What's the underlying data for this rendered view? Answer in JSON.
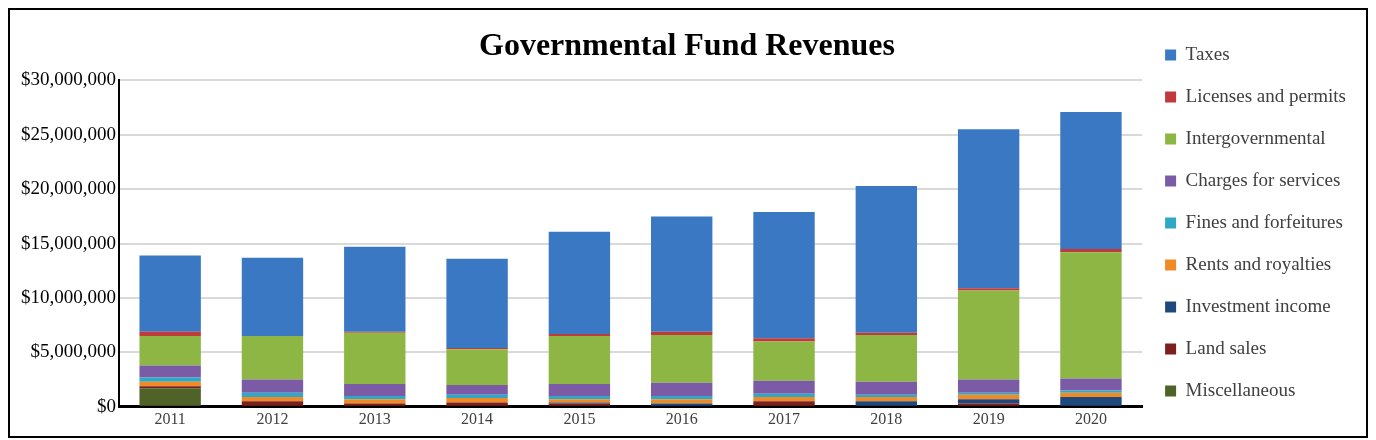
{
  "chart_data": {
    "type": "bar",
    "title": "Governmental Fund Revenues",
    "stacked": true,
    "legend": "right",
    "grid": "y",
    "categories": [
      "2011",
      "2012",
      "2013",
      "2014",
      "2015",
      "2016",
      "2017",
      "2018",
      "2019",
      "2020"
    ],
    "ylim": [
      0,
      30000000
    ],
    "yticks": [
      {
        "value": 0,
        "label": "$0"
      },
      {
        "value": 5000000,
        "label": "$5,000,000"
      },
      {
        "value": 10000000,
        "label": "$10,000,000"
      },
      {
        "value": 15000000,
        "label": "$15,000,000"
      },
      {
        "value": 20000000,
        "label": "$20,000,000"
      },
      {
        "value": 25000000,
        "label": "$25,000,000"
      },
      {
        "value": 30000000,
        "label": "$30,000,000"
      }
    ],
    "series": [
      {
        "name": "Miscellaneous",
        "color": "#4f6228",
        "values": [
          1700000,
          0,
          0,
          0,
          0,
          0,
          null,
          0,
          0,
          null
        ]
      },
      {
        "name": "Land sales",
        "color": "#7b1f1f",
        "values": [
          200000,
          500000,
          300000,
          400000,
          300000,
          0,
          500000,
          0,
          300000,
          0
        ]
      },
      {
        "name": "Investment income",
        "color": "#1f497d",
        "values": [
          0,
          null,
          0,
          0,
          100000,
          300000,
          0,
          500000,
          400000,
          900000
        ]
      },
      {
        "name": "Rents and royalties",
        "color": "#f08a24",
        "values": [
          400000,
          400000,
          400000,
          400000,
          300000,
          400000,
          400000,
          400000,
          400000,
          400000
        ]
      },
      {
        "name": "Fines and forfeitures",
        "color": "#2fa8c8",
        "values": [
          400000,
          400000,
          300000,
          300000,
          300000,
          300000,
          300000,
          200000,
          200000,
          200000
        ]
      },
      {
        "name": "Charges for services",
        "color": "#7b5aa6",
        "values": [
          1100000,
          1200000,
          1100000,
          900000,
          1100000,
          1200000,
          1200000,
          1200000,
          1200000,
          1100000
        ]
      },
      {
        "name": "Intergovernmental",
        "color": "#8db644",
        "values": [
          2700000,
          4000000,
          4700000,
          3300000,
          4400000,
          4400000,
          3600000,
          4300000,
          8200000,
          11600000
        ]
      },
      {
        "name": "Licenses and permits",
        "color": "#c0393b",
        "values": [
          400000,
          0,
          100000,
          100000,
          200000,
          300000,
          300000,
          200000,
          200000,
          300000
        ]
      },
      {
        "name": "Taxes",
        "color": "#3a78c3",
        "values": [
          7000000,
          7200000,
          7800000,
          8200000,
          9400000,
          10600000,
          11600000,
          13500000,
          14600000,
          12600000
        ]
      }
    ]
  }
}
